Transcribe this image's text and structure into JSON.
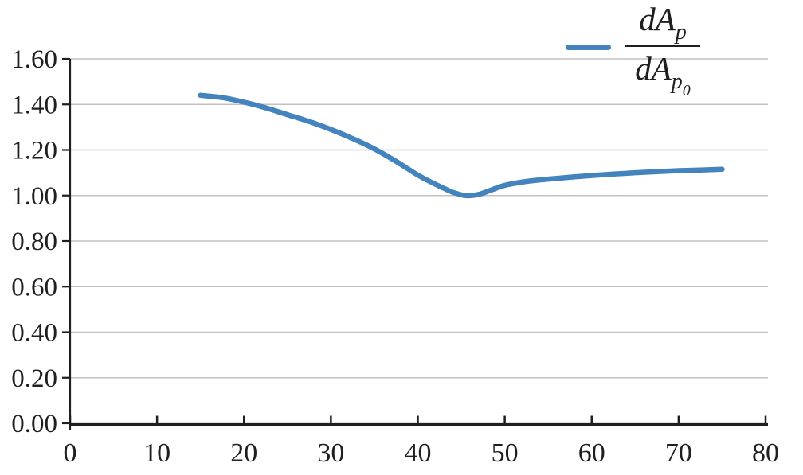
{
  "chart_data": {
    "type": "line",
    "title": "",
    "xlabel": "",
    "ylabel": "",
    "xlim": [
      0,
      80
    ],
    "ylim": [
      0,
      1.6
    ],
    "x_ticks": [
      0,
      10,
      20,
      30,
      40,
      50,
      60,
      70,
      80
    ],
    "y_ticks": [
      "0.00",
      "0.20",
      "0.40",
      "0.60",
      "0.80",
      "1.00",
      "1.20",
      "1.40",
      "1.60"
    ],
    "grid": "horizontal",
    "legend_position": "top-right",
    "series": [
      {
        "name": "dA_p / dA_p0",
        "color": "#4383be",
        "points": [
          [
            15,
            1.44
          ],
          [
            17.5,
            1.43
          ],
          [
            20,
            1.41
          ],
          [
            22.5,
            1.385
          ],
          [
            25,
            1.355
          ],
          [
            27.5,
            1.325
          ],
          [
            30,
            1.29
          ],
          [
            32.5,
            1.25
          ],
          [
            35,
            1.205
          ],
          [
            37.5,
            1.15
          ],
          [
            40,
            1.09
          ],
          [
            42,
            1.05
          ],
          [
            44,
            1.015
          ],
          [
            45.5,
            1.0
          ],
          [
            47,
            1.005
          ],
          [
            48.5,
            1.025
          ],
          [
            50,
            1.045
          ],
          [
            52.5,
            1.062
          ],
          [
            55,
            1.072
          ],
          [
            57.5,
            1.08
          ],
          [
            60,
            1.088
          ],
          [
            62.5,
            1.094
          ],
          [
            65,
            1.1
          ],
          [
            67.5,
            1.105
          ],
          [
            70,
            1.109
          ],
          [
            72.5,
            1.112
          ],
          [
            75,
            1.115
          ]
        ]
      }
    ]
  },
  "legend": {
    "numerator_main": "dA",
    "numerator_sub": "p",
    "denominator_main": "dA",
    "denominator_sub": "p",
    "denominator_subsub": "0"
  },
  "colors": {
    "line": "#4383be",
    "grid": "#c2c2c2",
    "axis": "#1f1f1f"
  }
}
